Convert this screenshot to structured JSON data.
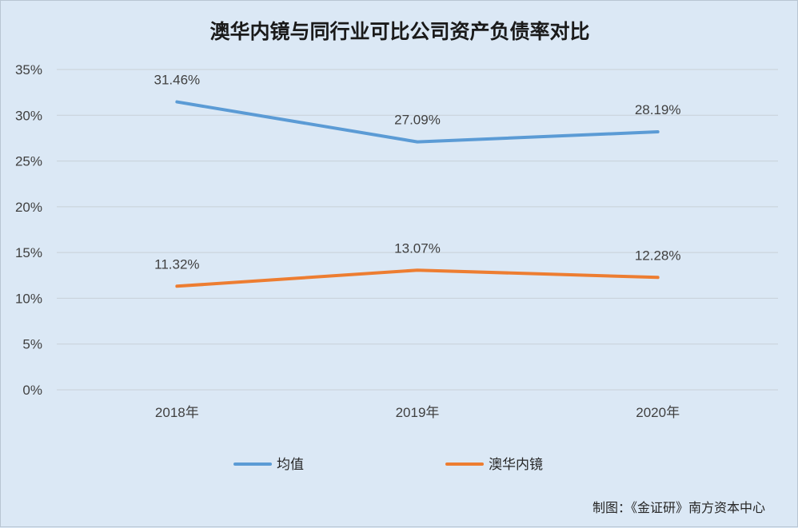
{
  "chart_data": {
    "type": "line",
    "title": "澳华内镜与同行业可比公司资产负债率对比",
    "categories": [
      "2018年",
      "2019年",
      "2020年"
    ],
    "series": [
      {
        "name": "均值",
        "values": [
          31.46,
          27.09,
          28.19
        ],
        "labels": [
          "31.46%",
          "27.09%",
          "28.19%"
        ],
        "color": "#5b9bd5"
      },
      {
        "name": "澳华内镜",
        "values": [
          11.32,
          13.07,
          12.28
        ],
        "labels": [
          "11.32%",
          "13.07%",
          "12.28%"
        ],
        "color": "#ed7d31"
      }
    ],
    "ylim": [
      0,
      35
    ],
    "yticks": [
      0,
      5,
      10,
      15,
      20,
      25,
      30,
      35
    ],
    "ytick_labels": [
      "0%",
      "5%",
      "10%",
      "15%",
      "20%",
      "25%",
      "30%",
      "35%"
    ],
    "grid": true,
    "legend_position": "bottom",
    "source": "制图：《金证研》南方资本中心"
  }
}
